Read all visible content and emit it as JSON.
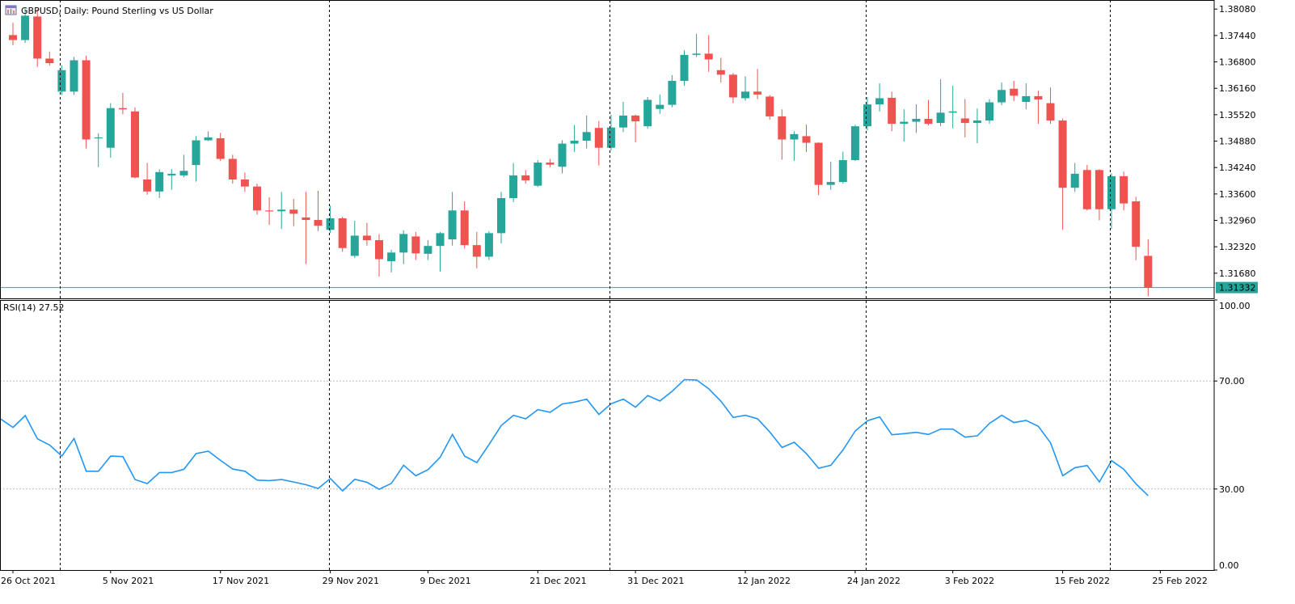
{
  "window": {
    "title": "GBPUSD, Daily:  Pound Sterling vs US Dollar",
    "icon": "chart-window-icon"
  },
  "rsi_panel": {
    "label": "RSI(14) 27.52"
  },
  "colors": {
    "bull": "#26a69a",
    "bear": "#ef5350",
    "rsi_line": "#2196f3",
    "current_price_line": "#26a69a",
    "current_price_badge": "#26a69a",
    "grid": "#000000",
    "level_line": "#c0c0c0"
  },
  "chart_data": [
    {
      "type": "candlestick",
      "title": "GBPUSD, Daily:  Pound Sterling vs US Dollar",
      "ylim": [
        1.3107,
        1.383
      ],
      "y_ticks": [
        "1.38080",
        "1.37440",
        "1.36800",
        "1.36160",
        "1.35520",
        "1.34880",
        "1.34240",
        "1.33600",
        "1.32960",
        "1.32320",
        "1.31680"
      ],
      "current_price": "1.31332",
      "x_tick_labels": [
        "26 Oct 2021",
        "5 Nov 2021",
        "17 Nov 2021",
        "29 Nov 2021",
        "9 Dec 2021",
        "21 Dec 2021",
        "31 Dec 2021",
        "12 Jan 2022",
        "24 Jan 2022",
        "3 Feb 2022",
        "15 Feb 2022",
        "25 Feb 2022"
      ],
      "x_tick_index": [
        0,
        8,
        17,
        26,
        34,
        43,
        51,
        60,
        69,
        77,
        86,
        94
      ],
      "vertical_separators_index": [
        4,
        26,
        49,
        70,
        90
      ],
      "candles": [
        {
          "o": 1.3745,
          "h": 1.3775,
          "l": 1.372,
          "c": 1.3733
        },
        {
          "o": 1.3733,
          "h": 1.381,
          "l": 1.3726,
          "c": 1.3792
        },
        {
          "o": 1.379,
          "h": 1.3808,
          "l": 1.3668,
          "c": 1.3688
        },
        {
          "o": 1.3688,
          "h": 1.3705,
          "l": 1.3671,
          "c": 1.3677
        },
        {
          "o": 1.3608,
          "h": 1.3672,
          "l": 1.36,
          "c": 1.366
        },
        {
          "o": 1.3608,
          "h": 1.3692,
          "l": 1.36,
          "c": 1.3684
        },
        {
          "o": 1.3684,
          "h": 1.3695,
          "l": 1.347,
          "c": 1.3492
        },
        {
          "o": 1.3495,
          "h": 1.3507,
          "l": 1.3425,
          "c": 1.3497
        },
        {
          "o": 1.3472,
          "h": 1.358,
          "l": 1.3448,
          "c": 1.3568
        },
        {
          "o": 1.3568,
          "h": 1.3605,
          "l": 1.3553,
          "c": 1.3565
        },
        {
          "o": 1.356,
          "h": 1.357,
          "l": 1.3398,
          "c": 1.34
        },
        {
          "o": 1.3395,
          "h": 1.3435,
          "l": 1.3358,
          "c": 1.3366
        },
        {
          "o": 1.3366,
          "h": 1.342,
          "l": 1.335,
          "c": 1.3413
        },
        {
          "o": 1.3405,
          "h": 1.342,
          "l": 1.337,
          "c": 1.3409
        },
        {
          "o": 1.3405,
          "h": 1.3455,
          "l": 1.34,
          "c": 1.3416
        },
        {
          "o": 1.343,
          "h": 1.35,
          "l": 1.339,
          "c": 1.349
        },
        {
          "o": 1.349,
          "h": 1.3512,
          "l": 1.3488,
          "c": 1.3497
        },
        {
          "o": 1.3495,
          "h": 1.3508,
          "l": 1.344,
          "c": 1.3445
        },
        {
          "o": 1.3445,
          "h": 1.3455,
          "l": 1.3385,
          "c": 1.3395
        },
        {
          "o": 1.3395,
          "h": 1.3412,
          "l": 1.3365,
          "c": 1.3378
        },
        {
          "o": 1.3378,
          "h": 1.3385,
          "l": 1.331,
          "c": 1.332
        },
        {
          "o": 1.332,
          "h": 1.3352,
          "l": 1.3285,
          "c": 1.3318
        },
        {
          "o": 1.3318,
          "h": 1.3365,
          "l": 1.3275,
          "c": 1.3322
        },
        {
          "o": 1.3322,
          "h": 1.3348,
          "l": 1.3282,
          "c": 1.3312
        },
        {
          "o": 1.3303,
          "h": 1.3365,
          "l": 1.319,
          "c": 1.3297
        },
        {
          "o": 1.3297,
          "h": 1.3368,
          "l": 1.327,
          "c": 1.3283
        },
        {
          "o": 1.3273,
          "h": 1.3332,
          "l": 1.3265,
          "c": 1.3301
        },
        {
          "o": 1.3301,
          "h": 1.3305,
          "l": 1.322,
          "c": 1.3229
        },
        {
          "o": 1.321,
          "h": 1.3295,
          "l": 1.3205,
          "c": 1.3259
        },
        {
          "o": 1.3259,
          "h": 1.329,
          "l": 1.3235,
          "c": 1.3248
        },
        {
          "o": 1.3248,
          "h": 1.3263,
          "l": 1.316,
          "c": 1.3202
        },
        {
          "o": 1.3197,
          "h": 1.3225,
          "l": 1.317,
          "c": 1.3218
        },
        {
          "o": 1.3218,
          "h": 1.3272,
          "l": 1.319,
          "c": 1.3263
        },
        {
          "o": 1.3257,
          "h": 1.3268,
          "l": 1.32,
          "c": 1.3216
        },
        {
          "o": 1.3215,
          "h": 1.3248,
          "l": 1.32,
          "c": 1.3234
        },
        {
          "o": 1.3234,
          "h": 1.3268,
          "l": 1.3172,
          "c": 1.3265
        },
        {
          "o": 1.325,
          "h": 1.3365,
          "l": 1.3235,
          "c": 1.332
        },
        {
          "o": 1.332,
          "h": 1.3342,
          "l": 1.3228,
          "c": 1.3236
        },
        {
          "o": 1.3236,
          "h": 1.3268,
          "l": 1.318,
          "c": 1.3208
        },
        {
          "o": 1.3208,
          "h": 1.327,
          "l": 1.32,
          "c": 1.3265
        },
        {
          "o": 1.3265,
          "h": 1.3365,
          "l": 1.324,
          "c": 1.335
        },
        {
          "o": 1.335,
          "h": 1.3435,
          "l": 1.334,
          "c": 1.3405
        },
        {
          "o": 1.3405,
          "h": 1.3418,
          "l": 1.3385,
          "c": 1.3393
        },
        {
          "o": 1.338,
          "h": 1.3442,
          "l": 1.3377,
          "c": 1.3436
        },
        {
          "o": 1.3436,
          "h": 1.3445,
          "l": 1.3425,
          "c": 1.3431
        },
        {
          "o": 1.3426,
          "h": 1.349,
          "l": 1.341,
          "c": 1.3482
        },
        {
          "o": 1.3482,
          "h": 1.3527,
          "l": 1.3462,
          "c": 1.3489
        },
        {
          "o": 1.3489,
          "h": 1.355,
          "l": 1.347,
          "c": 1.351
        },
        {
          "o": 1.352,
          "h": 1.3537,
          "l": 1.3429,
          "c": 1.3472
        },
        {
          "o": 1.3472,
          "h": 1.3552,
          "l": 1.3465,
          "c": 1.3521
        },
        {
          "o": 1.3521,
          "h": 1.3583,
          "l": 1.351,
          "c": 1.355
        },
        {
          "o": 1.355,
          "h": 1.3552,
          "l": 1.3485,
          "c": 1.3536
        },
        {
          "o": 1.3524,
          "h": 1.3595,
          "l": 1.3518,
          "c": 1.3588
        },
        {
          "o": 1.3566,
          "h": 1.3601,
          "l": 1.3554,
          "c": 1.3576
        },
        {
          "o": 1.3576,
          "h": 1.3648,
          "l": 1.357,
          "c": 1.3634
        },
        {
          "o": 1.3634,
          "h": 1.3708,
          "l": 1.3622,
          "c": 1.3697
        },
        {
          "o": 1.3697,
          "h": 1.3748,
          "l": 1.3692,
          "c": 1.37
        },
        {
          "o": 1.37,
          "h": 1.3745,
          "l": 1.3656,
          "c": 1.3686
        },
        {
          "o": 1.366,
          "h": 1.369,
          "l": 1.363,
          "c": 1.3649
        },
        {
          "o": 1.3649,
          "h": 1.3653,
          "l": 1.358,
          "c": 1.3594
        },
        {
          "o": 1.3592,
          "h": 1.3645,
          "l": 1.3586,
          "c": 1.3608
        },
        {
          "o": 1.3608,
          "h": 1.3663,
          "l": 1.359,
          "c": 1.3601
        },
        {
          "o": 1.3596,
          "h": 1.36,
          "l": 1.354,
          "c": 1.3548
        },
        {
          "o": 1.3548,
          "h": 1.3565,
          "l": 1.3443,
          "c": 1.3492
        },
        {
          "o": 1.3492,
          "h": 1.3512,
          "l": 1.344,
          "c": 1.3505
        },
        {
          "o": 1.35,
          "h": 1.3528,
          "l": 1.3462,
          "c": 1.3484
        },
        {
          "o": 1.3484,
          "h": 1.3485,
          "l": 1.3357,
          "c": 1.3382
        },
        {
          "o": 1.3382,
          "h": 1.3438,
          "l": 1.337,
          "c": 1.3389
        },
        {
          "o": 1.3389,
          "h": 1.3463,
          "l": 1.3385,
          "c": 1.3442
        },
        {
          "o": 1.3442,
          "h": 1.3528,
          "l": 1.344,
          "c": 1.3524
        },
        {
          "o": 1.3524,
          "h": 1.3595,
          "l": 1.3514,
          "c": 1.3577
        },
        {
          "o": 1.3577,
          "h": 1.3628,
          "l": 1.356,
          "c": 1.3592
        },
        {
          "o": 1.3593,
          "h": 1.3608,
          "l": 1.3512,
          "c": 1.353
        },
        {
          "o": 1.353,
          "h": 1.3565,
          "l": 1.3487,
          "c": 1.3535
        },
        {
          "o": 1.3535,
          "h": 1.3577,
          "l": 1.3508,
          "c": 1.3542
        },
        {
          "o": 1.3542,
          "h": 1.3588,
          "l": 1.3526,
          "c": 1.353
        },
        {
          "o": 1.3532,
          "h": 1.3638,
          "l": 1.3524,
          "c": 1.3557
        },
        {
          "o": 1.3557,
          "h": 1.3622,
          "l": 1.3519,
          "c": 1.356
        },
        {
          "o": 1.3543,
          "h": 1.359,
          "l": 1.3497,
          "c": 1.3532
        },
        {
          "o": 1.3532,
          "h": 1.3567,
          "l": 1.3483,
          "c": 1.3538
        },
        {
          "o": 1.3538,
          "h": 1.359,
          "l": 1.353,
          "c": 1.3582
        },
        {
          "o": 1.3582,
          "h": 1.363,
          "l": 1.3575,
          "c": 1.3612
        },
        {
          "o": 1.3615,
          "h": 1.3634,
          "l": 1.3585,
          "c": 1.3598
        },
        {
          "o": 1.3583,
          "h": 1.3628,
          "l": 1.3565,
          "c": 1.3597
        },
        {
          "o": 1.3597,
          "h": 1.361,
          "l": 1.353,
          "c": 1.3589
        },
        {
          "o": 1.358,
          "h": 1.3618,
          "l": 1.353,
          "c": 1.3538
        },
        {
          "o": 1.3538,
          "h": 1.3543,
          "l": 1.3273,
          "c": 1.3375
        },
        {
          "o": 1.3375,
          "h": 1.3435,
          "l": 1.3365,
          "c": 1.3409
        },
        {
          "o": 1.3418,
          "h": 1.343,
          "l": 1.332,
          "c": 1.3323
        },
        {
          "o": 1.3418,
          "h": 1.342,
          "l": 1.3296,
          "c": 1.3323
        },
        {
          "o": 1.3323,
          "h": 1.341,
          "l": 1.3275,
          "c": 1.3403
        },
        {
          "o": 1.3403,
          "h": 1.3414,
          "l": 1.332,
          "c": 1.3337
        },
        {
          "o": 1.3342,
          "h": 1.3353,
          "l": 1.32,
          "c": 1.3232
        },
        {
          "o": 1.321,
          "h": 1.325,
          "l": 1.3112,
          "c": 1.3133
        }
      ]
    },
    {
      "type": "line",
      "title": "RSI(14) 27.52",
      "ylim": [
        0,
        100
      ],
      "y_ticks": [
        "100.00",
        "70.00",
        "30.00",
        "0.00"
      ],
      "levels": [
        70,
        30
      ],
      "series": [
        {
          "values": [
            55.9,
            52.8,
            57.2,
            48.6,
            46.3,
            42.2,
            48.7,
            36.6,
            36.6,
            42.2,
            42.0,
            33.5,
            32.0,
            36.1,
            36.1,
            37.3,
            43.1,
            44.0,
            40.6,
            37.4,
            36.6,
            33.3,
            33.1,
            33.5,
            32.6,
            31.6,
            30.2,
            33.9,
            29.3,
            33.6,
            32.5,
            29.9,
            32.1,
            38.8,
            34.9,
            37.2,
            41.8,
            50.2,
            42.2,
            39.8,
            46.5,
            53.5,
            57.3,
            56.0,
            59.4,
            58.4,
            61.5,
            62.2,
            63.3,
            57.6,
            61.6,
            63.3,
            60.3,
            64.6,
            62.6,
            66.2,
            70.5,
            70.4,
            67.1,
            62.5,
            56.5,
            57.3,
            56.0,
            51.1,
            45.4,
            47.3,
            43.1,
            37.7,
            38.8,
            44.5,
            51.5,
            55.3,
            56.7,
            50.1,
            50.5,
            51.0,
            50.2,
            52.2,
            52.2,
            49.2,
            49.7,
            54.3,
            57.3,
            54.6,
            55.4,
            53.2,
            47.1,
            34.9,
            37.9,
            38.7,
            32.6,
            40.5,
            37.3,
            31.9,
            27.5
          ]
        }
      ]
    }
  ]
}
